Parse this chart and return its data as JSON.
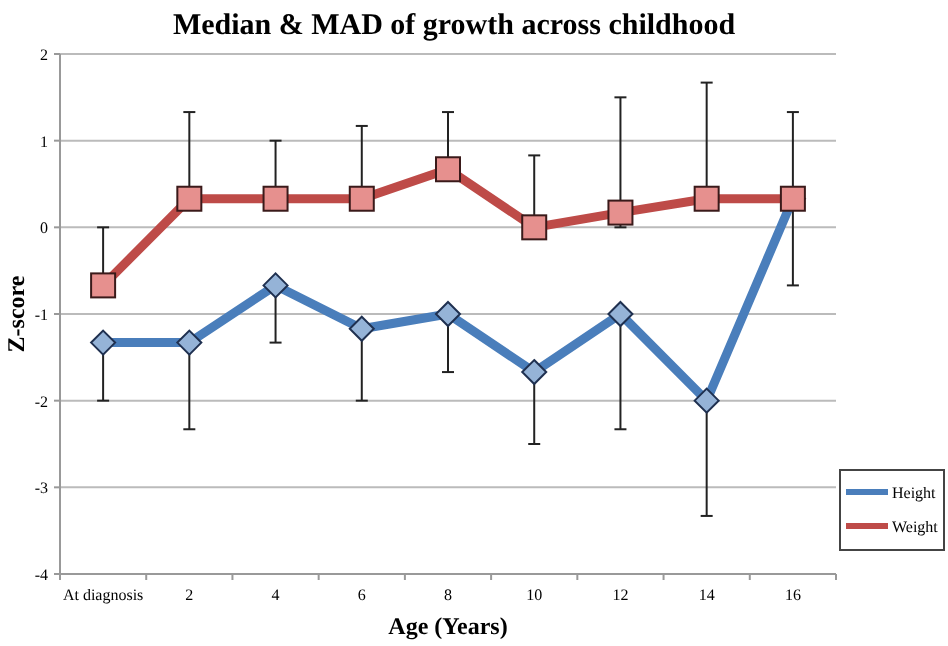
{
  "chart_data": {
    "type": "line",
    "title": "Median & MAD of growth across childhood",
    "xlabel": "Age (Years)",
    "ylabel": "Z-score",
    "categories": [
      "At diagnosis",
      "2",
      "4",
      "6",
      "8",
      "10",
      "12",
      "14",
      "16"
    ],
    "series": [
      {
        "name": "Height",
        "color": "#4a7ebb",
        "marker": "diamond",
        "values": [
          -1.33,
          -1.33,
          -0.67,
          -1.17,
          -1,
          -1.67,
          -1,
          -2,
          0.33
        ],
        "errors": [
          [
            -2,
            -1.33
          ],
          [
            -2.33,
            -1.33
          ],
          [
            -1.33,
            -0.67
          ],
          [
            -2,
            -1.17
          ],
          [
            -1.67,
            -1
          ],
          [
            -2.5,
            -1.67
          ],
          [
            -2.33,
            -1
          ],
          [
            -3.33,
            -2
          ],
          null
        ]
      },
      {
        "name": "Weight",
        "color": "#be4b48",
        "marker": "square",
        "values": [
          -0.67,
          0.33,
          0.33,
          0.33,
          0.67,
          0,
          0.17,
          0.33,
          0.33
        ],
        "errors": [
          [
            -0.67,
            0
          ],
          [
            0.33,
            1.33
          ],
          [
            0.33,
            1
          ],
          [
            0.33,
            1.17
          ],
          [
            0.67,
            1.33
          ],
          [
            0,
            0.83
          ],
          [
            0,
            1.5
          ],
          [
            0.33,
            1.67
          ],
          [
            -0.67,
            1.33
          ]
        ]
      }
    ],
    "ylim": [
      -4,
      2
    ],
    "yticks": [
      -4,
      -3,
      -2,
      -1,
      0,
      1,
      2
    ],
    "grid": "y",
    "legend": "right",
    "line_style": "solid"
  }
}
